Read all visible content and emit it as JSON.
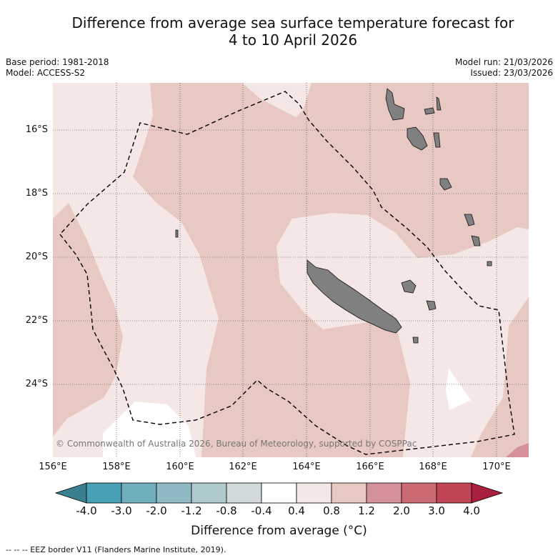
{
  "title_line1": "Difference from average sea surface temperature forecast for",
  "title_line2": "4 to 10 April 2026",
  "base_period": "Base period: 1981-2018",
  "model": "Model: ACCESS-S2",
  "model_run": "Model run: 21/03/2026",
  "issued": "Issued: 23/03/2026",
  "lat_labels": [
    "16°S",
    "18°S",
    "20°S",
    "22°S",
    "24°S"
  ],
  "lon_labels": [
    "156°E",
    "158°E",
    "160°E",
    "162°E",
    "164°E",
    "166°E",
    "168°E",
    "170°E"
  ],
  "copyright": "© Commonwealth of Australia 2026, Bureau of Meteorology, supported by COSPPac",
  "colorbar": {
    "ticks": [
      "-4.0",
      "-3.0",
      "-2.0",
      "-1.2",
      "-0.8",
      "-0.4",
      "0.4",
      "0.8",
      "1.2",
      "2.0",
      "3.0",
      "4.0"
    ],
    "colors": [
      "#47a0b3",
      "#6eaebd",
      "#8fbac4",
      "#aecacd",
      "#d1d9da",
      "#ffffff",
      "#f5e7e5",
      "#e8c8c3",
      "#d4919a",
      "#cb6a72",
      "#c04656"
    ],
    "under_color": "#3a8090",
    "over_color": "#a8203b",
    "label": "Difference from average (°C)"
  },
  "legend": "-- -- -- EEZ border V11 (Flanders Marine Institute, 2019).",
  "map_colors": {
    "band_0_4_0_8": "#f5e7e5",
    "band_0_8_1_2": "#e8c8c3",
    "band_1_2_2_0": "#d4919a",
    "neutral": "#ffffff",
    "land": "#808080"
  }
}
